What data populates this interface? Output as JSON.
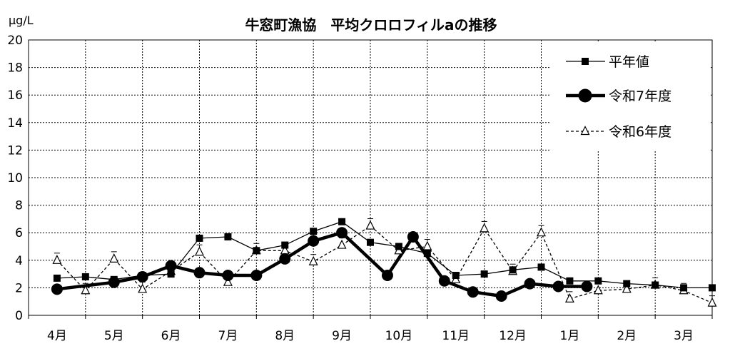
{
  "chart_data": {
    "type": "line",
    "title": "牛窓町漁協　平均クロロフィルaの推移",
    "ylabel": "μg/L",
    "ylim": [
      0,
      20
    ],
    "yticks": [
      "0",
      "2",
      "4",
      "6",
      "8",
      "10",
      "12",
      "14",
      "16",
      "18",
      "20"
    ],
    "categories": [
      "4月",
      "5月",
      "6月",
      "7月",
      "8月",
      "9月",
      "10月",
      "11月",
      "12月",
      "1月",
      "2月",
      "3月"
    ],
    "grid": true,
    "legend_position": "top-right",
    "series": [
      {
        "name": "平年値",
        "style": "solid-thin-square",
        "color": "#000000",
        "x": [
          0.0,
          0.5,
          1.0,
          1.5,
          2.0,
          2.5,
          3.0,
          3.5,
          4.0,
          4.5,
          5.0,
          5.5,
          6.0,
          6.5,
          7.0,
          7.5,
          8.0,
          8.5,
          9.0,
          9.5,
          10.0,
          10.5,
          11.0,
          11.5
        ],
        "values": [
          2.7,
          2.8,
          2.6,
          2.9,
          3.0,
          5.6,
          5.7,
          4.7,
          5.1,
          6.1,
          6.8,
          5.3,
          5.0,
          4.5,
          2.9,
          3.0,
          3.3,
          3.5,
          2.5,
          2.5,
          2.3,
          2.2,
          2.0,
          2.0
        ]
      },
      {
        "name": "令和7年度",
        "style": "solid-thick-circle",
        "color": "#000000",
        "x": [
          0.0,
          1.0,
          1.5,
          2.0,
          2.5,
          3.0,
          3.5,
          4.0,
          4.5,
          5.0,
          5.8,
          6.25,
          6.8,
          7.3,
          7.8,
          8.3,
          8.8,
          9.3
        ],
        "values": [
          1.9,
          2.4,
          2.8,
          3.6,
          3.1,
          2.9,
          2.9,
          4.1,
          5.4,
          6.0,
          2.9,
          5.7,
          2.5,
          1.7,
          1.4,
          2.3,
          2.1,
          2.1
        ]
      },
      {
        "name": "令和6年度",
        "style": "dashed-thin-triangle",
        "color": "#000000",
        "x": [
          0.0,
          0.5,
          1.0,
          1.5,
          2.0,
          2.5,
          3.0,
          3.5,
          4.0,
          4.5,
          5.0,
          5.5,
          6.0,
          6.5,
          7.0,
          7.5,
          8.0,
          8.5,
          9.0,
          9.5,
          10.0,
          10.5,
          11.0,
          11.5
        ],
        "values": [
          4.0,
          1.8,
          4.1,
          1.9,
          3.2,
          4.6,
          2.4,
          4.7,
          4.7,
          3.9,
          5.1,
          6.5,
          4.7,
          5.0,
          2.6,
          6.3,
          3.2,
          6.0,
          1.2,
          1.8,
          1.9,
          2.2,
          1.8,
          0.9
        ]
      }
    ]
  }
}
